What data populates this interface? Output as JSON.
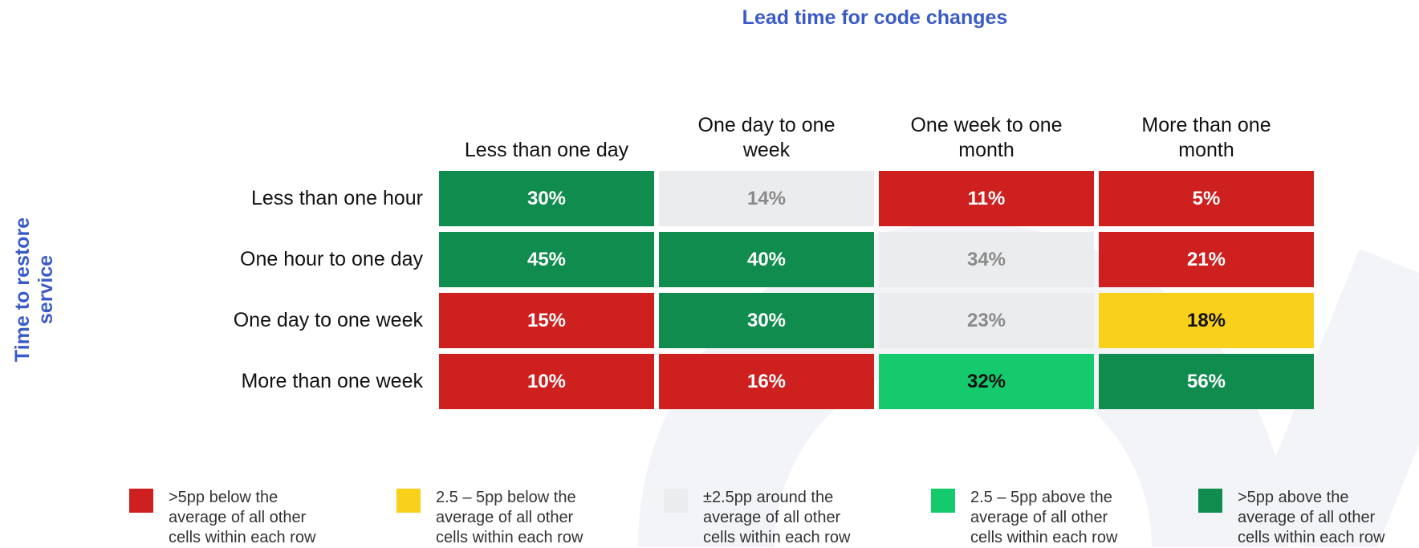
{
  "chart_data": {
    "type": "heatmap",
    "title": "Lead time for code changes",
    "y_title": "Time to restore service",
    "x_categories": [
      "Less than one day",
      "One day to one week",
      "One week to one month",
      "More than one month"
    ],
    "y_categories": [
      "Less than one hour",
      "One hour to one day",
      "One day to one week",
      "More than one week"
    ],
    "values": [
      [
        30,
        14,
        11,
        5
      ],
      [
        45,
        40,
        34,
        21
      ],
      [
        15,
        30,
        23,
        18
      ],
      [
        10,
        16,
        32,
        56
      ]
    ],
    "value_labels": [
      [
        "30%",
        "14%",
        "11%",
        "5%"
      ],
      [
        "45%",
        "40%",
        "34%",
        "21%"
      ],
      [
        "15%",
        "30%",
        "23%",
        "18%"
      ],
      [
        "10%",
        "16%",
        "32%",
        "56%"
      ]
    ],
    "colors": [
      [
        "#118c4f",
        "#ebecee",
        "#cd201f",
        "#cd201f"
      ],
      [
        "#118c4f",
        "#118c4f",
        "#ebecee",
        "#cd201f"
      ],
      [
        "#cd201f",
        "#118c4f",
        "#ebecee",
        "#f9d11b"
      ],
      [
        "#cd201f",
        "#cd201f",
        "#14ca6c",
        "#118c4f"
      ]
    ],
    "legend": [
      {
        "color": "#cd201f",
        "label": ">5pp below the average of all other cells within each row"
      },
      {
        "color": "#f9d11b",
        "label": "2.5 – 5pp below the average of all other cells within each row"
      },
      {
        "color": "#ebecee",
        "label": "±2.5pp around the average of all other cells within each row"
      },
      {
        "color": "#14ca6c",
        "label": "2.5 – 5pp above the average of all other cells within each row"
      },
      {
        "color": "#118c4f",
        "label": ">5pp above the average of all other cells within each row"
      }
    ]
  }
}
